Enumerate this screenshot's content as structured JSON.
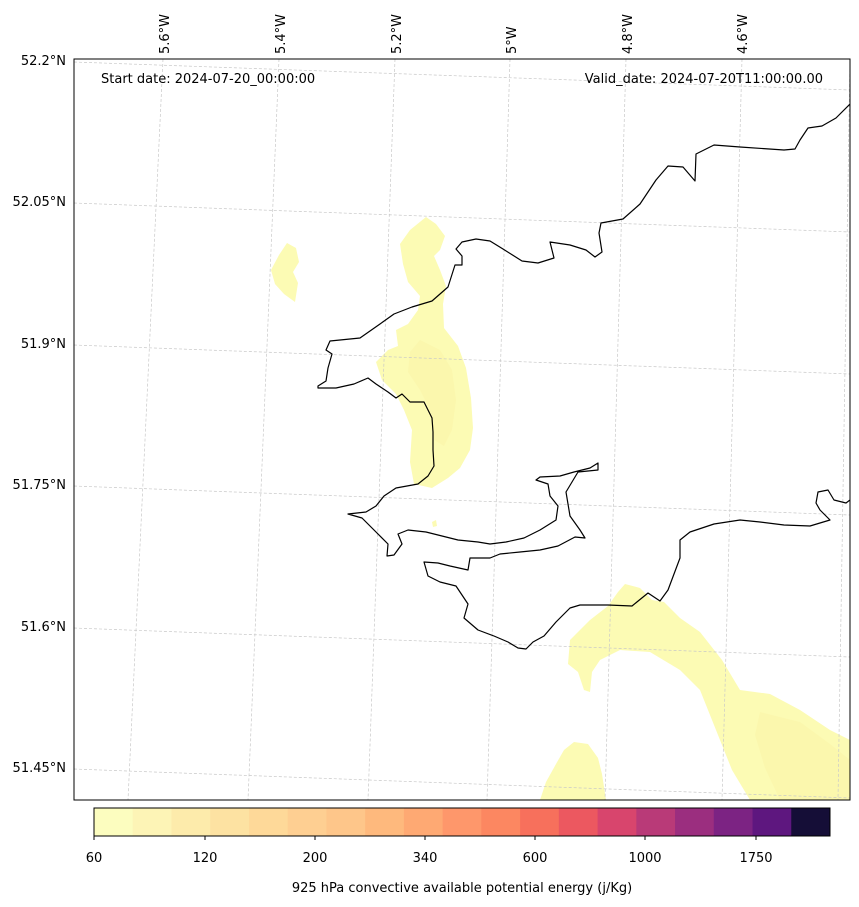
{
  "header": {
    "start_date": "Start date: 2024-07-20_00:00:00",
    "valid_date": "Valid_date: 2024-07-20T11:00:00.00"
  },
  "lon_labels": [
    "5.6°W",
    "5.4°W",
    "5.2°W",
    "5°W",
    "4.8°W",
    "4.6°W"
  ],
  "lat_labels": [
    "52.2°N",
    "52.05°N",
    "51.9°N",
    "51.75°N",
    "51.6°N",
    "51.45°N"
  ],
  "colorbar": {
    "tick_labels": [
      "60",
      "120",
      "200",
      "340",
      "600",
      "1000",
      "1750"
    ],
    "label": "925 hPa convective available potential energy (j/Kg)",
    "colors": [
      "#fcfdbf",
      "#fdf4b6",
      "#fdebab",
      "#fde2a2",
      "#fed999",
      "#fecf92",
      "#fec68a",
      "#feb97d",
      "#fea973",
      "#fe976b",
      "#fc8761",
      "#f7705c",
      "#ec5860",
      "#d8456d",
      "#b93a78",
      "#9b2e7f",
      "#7c2383",
      "#5e177f",
      "#150e37"
    ]
  },
  "colors": {
    "coast": "#000000",
    "grid": "#c8c8c8",
    "cape_low": "#fcfbb4",
    "cape_mid": "#fbf6b0"
  }
}
